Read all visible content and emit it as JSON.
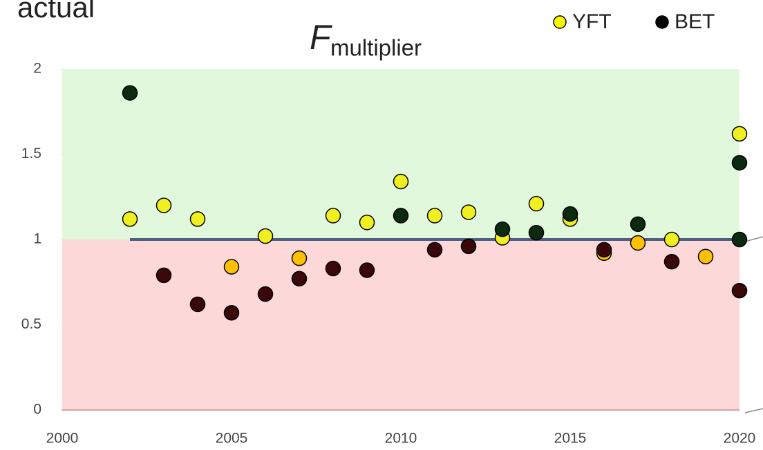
{
  "chart_data": {
    "type": "scatter",
    "corner_text": "actual",
    "title": "F",
    "title_subscript": "multiplier",
    "xlim": [
      2000,
      2020
    ],
    "xticks": [
      2000,
      2005,
      2010,
      2015,
      2020
    ],
    "ylim": [
      0,
      2
    ],
    "yticks": [
      0,
      0.5,
      1,
      1.5,
      2
    ],
    "threshold": 1,
    "color_above_threshold": "#e2f8dc",
    "color_below_threshold": "#fdd8d8",
    "reference_line": {
      "value": 1,
      "x": [
        2002,
        2020
      ],
      "color": "#4f5f82"
    },
    "legend": "top-right",
    "series": [
      {
        "name": "YFT",
        "color": "#f0f020",
        "color_below_threshold": "#ffc000",
        "legend_color": "#f8f800",
        "x": [
          2002,
          2003,
          2004,
          2005,
          2006,
          2007,
          2008,
          2009,
          2010,
          2011,
          2012,
          2013,
          2014,
          2015,
          2016,
          2017,
          2018,
          2019,
          2020
        ],
        "values": [
          1.12,
          1.2,
          1.12,
          0.84,
          1.02,
          0.89,
          1.14,
          1.1,
          1.34,
          1.14,
          1.16,
          1.01,
          1.21,
          1.12,
          0.92,
          0.98,
          1.0,
          0.9,
          1.62
        ]
      },
      {
        "name": "BET",
        "color": "#0c2a10",
        "color_below_threshold": "#3a0808",
        "legend_color": "#000000",
        "x": [
          2002,
          2003,
          2004,
          2005,
          2006,
          2007,
          2008,
          2009,
          2010,
          2011,
          2012,
          2013,
          2014,
          2015,
          2016,
          2017,
          2018,
          2020,
          2020,
          2020
        ],
        "values": [
          1.86,
          0.79,
          0.62,
          0.57,
          0.68,
          0.77,
          0.83,
          0.82,
          1.14,
          0.94,
          0.96,
          1.06,
          1.04,
          1.15,
          0.94,
          1.09,
          0.87,
          1.45,
          1.0,
          0.7
        ]
      }
    ]
  }
}
